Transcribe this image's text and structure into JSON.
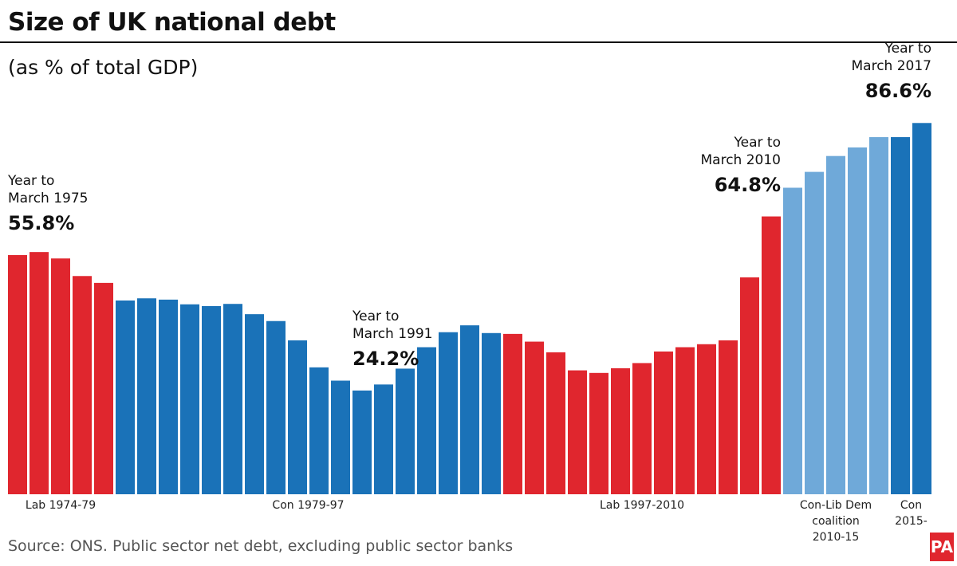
{
  "chart_data": {
    "type": "bar",
    "title": "Size of UK national debt",
    "subtitle": "(as % of total GDP)",
    "source": "Source: ONS. Public sector net debt, excluding public sector banks",
    "logo": "PA",
    "ylim": [
      0,
      90
    ],
    "series": [
      {
        "name": "Lab 1974-79",
        "color": "#e0262e",
        "values": [
          55.8,
          56.5,
          55.0,
          50.9,
          49.3
        ],
        "value_labels": [
          "55.8%",
          null,
          null,
          null,
          null
        ]
      },
      {
        "name": "Con 1979-97",
        "color": "#1a72b8",
        "values": [
          45.2,
          45.7,
          45.4,
          44.3,
          43.9,
          44.4,
          42.0,
          40.4,
          35.9,
          29.6,
          26.5,
          24.2,
          25.6,
          29.3,
          34.3,
          37.8,
          39.4,
          37.6
        ],
        "value_labels": [
          null,
          null,
          null,
          null,
          null,
          null,
          null,
          null,
          null,
          null,
          null,
          "24.2%",
          null,
          null,
          null,
          null,
          null,
          null
        ]
      },
      {
        "name": "Lab 1997-2010",
        "color": "#e0262e",
        "values": [
          37.4,
          35.6,
          33.1,
          28.9,
          28.3,
          29.4,
          30.6,
          33.3,
          34.3,
          35.0,
          35.9,
          50.6,
          64.8
        ],
        "value_labels": [
          null,
          null,
          null,
          null,
          null,
          null,
          null,
          null,
          null,
          null,
          null,
          null,
          "64.8%"
        ]
      },
      {
        "name": "Con-Lib Dem\ncoalition\n2010-15",
        "color": "#6fa9d9",
        "values": [
          71.5,
          75.2,
          78.9,
          80.9,
          83.3
        ],
        "value_labels": [
          null,
          null,
          null,
          null,
          null
        ]
      },
      {
        "name": "Con\n2015-",
        "color": "#1a72b8",
        "values": [
          83.3,
          86.6
        ],
        "value_labels": [
          null,
          "86.6%"
        ]
      }
    ],
    "annotations": [
      "Year to\nMarch 1975",
      "Year to\nMarch 1991",
      "Year to\nMarch 2010",
      "Year to\nMarch 2017"
    ]
  }
}
